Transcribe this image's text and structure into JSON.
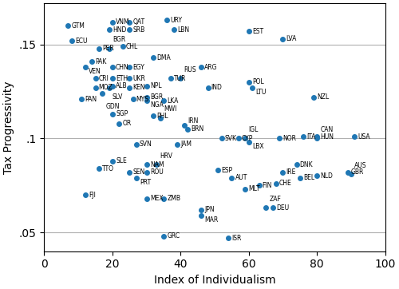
{
  "chart_data": {
    "type": "scatter",
    "xlabel": "Index of Individualism",
    "ylabel": "Tax Progressivity",
    "labels": [
      "GTM",
      "ECU",
      "VNM",
      "QAT",
      "HND",
      "SRB",
      "URY",
      "LBN",
      "EST",
      "LVA",
      "PER",
      "BGR",
      "CHL",
      "DMA",
      "PAK",
      "VEN",
      "CHN",
      "EGY",
      "ARG",
      "CRI",
      "ETH",
      "UKR",
      "TUR",
      "RUS",
      "ALB",
      "MOZ",
      "SLV",
      "KEN",
      "NPL",
      "IND",
      "POL",
      "LTU",
      "GDN",
      "PAN",
      "MYS",
      "BGR",
      "NGA",
      "LKA",
      "NZL",
      "SGP",
      "OR",
      "PHL",
      "MWI",
      "BRN",
      "IRN",
      "SVK",
      "CYP",
      "IGL",
      "LBX",
      "NOR",
      "ITA",
      "HUN",
      "CAN",
      "USA",
      "SVN",
      "JAM",
      "SLE",
      "TTO",
      "NAM",
      "HRV",
      "SEN",
      "ROU",
      "PRT",
      "ESP",
      "AUT",
      "DNK",
      "IRE",
      "BEL",
      "NLD",
      "GBR",
      "AUS",
      "CHE",
      "FIN",
      "MLT",
      "FJI",
      "MEX",
      "ZMB",
      "JPN",
      "MAR",
      "DEU",
      "ZAF",
      "GRC",
      "ISR"
    ],
    "x": [
      7,
      8,
      20,
      25,
      19,
      25,
      36,
      38,
      60,
      70,
      16,
      19,
      23,
      32,
      14,
      12,
      20,
      25,
      46,
      15,
      20,
      25,
      37,
      40,
      20,
      15,
      19,
      25,
      30,
      48,
      60,
      61,
      17,
      11,
      26,
      30,
      30,
      35,
      79,
      20,
      22,
      32,
      34,
      42,
      41,
      52,
      57,
      59,
      60,
      69,
      76,
      80,
      80,
      91,
      27,
      39,
      20,
      16,
      30,
      33,
      25,
      30,
      27,
      51,
      55,
      74,
      70,
      75,
      80,
      89,
      90,
      68,
      63,
      59,
      12,
      30,
      35,
      46,
      46,
      67,
      65,
      35,
      54
    ],
    "values": [
      0.16,
      0.152,
      0.162,
      0.162,
      0.158,
      0.158,
      0.163,
      0.158,
      0.157,
      0.153,
      0.148,
      0.148,
      0.149,
      0.143,
      0.141,
      0.138,
      0.138,
      0.138,
      0.138,
      0.132,
      0.132,
      0.132,
      0.132,
      0.132,
      0.128,
      0.127,
      0.127,
      0.127,
      0.128,
      0.127,
      0.13,
      0.127,
      0.124,
      0.121,
      0.121,
      0.122,
      0.12,
      0.12,
      0.122,
      0.113,
      0.108,
      0.112,
      0.111,
      0.105,
      0.107,
      0.1,
      0.1,
      0.1,
      0.098,
      0.1,
      0.101,
      0.101,
      0.1,
      0.101,
      0.097,
      0.097,
      0.088,
      0.084,
      0.086,
      0.086,
      0.082,
      0.082,
      0.079,
      0.083,
      0.079,
      0.086,
      0.082,
      0.079,
      0.08,
      0.082,
      0.081,
      0.076,
      0.075,
      0.073,
      0.07,
      0.068,
      0.068,
      0.062,
      0.059,
      0.063,
      0.063,
      0.048,
      0.047
    ],
    "xlim": [
      0,
      100
    ],
    "xticks": [
      0,
      20,
      40,
      60,
      80,
      100
    ],
    "ylim": [
      0.04,
      0.172
    ],
    "yticks": [
      {
        "value": 0.05,
        "label": ".05"
      },
      {
        "value": 0.1,
        "label": ".1"
      },
      {
        "value": 0.15,
        "label": ".15"
      }
    ],
    "grid": "y"
  }
}
